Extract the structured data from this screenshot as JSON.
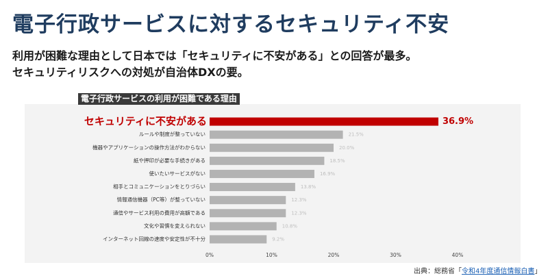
{
  "header": {
    "title": "電子行政サービスに対するセキュリティ不安",
    "subtitle_line1": "利用が困難な理由として日本では「セキュリティに不安がある」との回答が最多。",
    "subtitle_line2": "セキュリティリスクへの対処が自治体DXの要。"
  },
  "source": {
    "prefix": "出典：総務省「",
    "link_text": "令和4年度通信情報白書",
    "suffix": "」"
  },
  "colors": {
    "highlight": "#c00000",
    "bar": "#b3b3b3",
    "panel": "#f3f3f3",
    "value_gray": "#bdbdbd"
  },
  "chart_data": {
    "type": "bar",
    "orientation": "horizontal",
    "title": "電子行政サービスの利用が困難である理由",
    "categories": [
      "セキュリティに不安がある",
      "ルールや制度が整っていない",
      "機器やアプリケーションの操作方法がわからない",
      "紙や押印が必要な手続きがある",
      "使いたいサービスがない",
      "相手とコミュニケーションをとりづらい",
      "情報通信機器（PC等）が整っていない",
      "通信やサービス利用の費用が高額である",
      "文化や習慣を変えられない",
      "インターネット回線の速度や安定性が不十分"
    ],
    "values": [
      36.9,
      21.5,
      20.0,
      18.5,
      16.9,
      13.8,
      12.3,
      12.3,
      10.8,
      9.2
    ],
    "value_labels": [
      "36.9%",
      "21.5%",
      "20.0%",
      "18.5%",
      "16.9%",
      "13.8%",
      "12.3%",
      "12.3%",
      "10.8%",
      "9.2%"
    ],
    "highlight_index": 0,
    "x_ticks": [
      0,
      10,
      20,
      30,
      40
    ],
    "x_tick_labels": [
      "0%",
      "10%",
      "20%",
      "30%",
      "40%"
    ],
    "xlim": [
      0,
      40
    ],
    "xlabel": "",
    "ylabel": "",
    "legend": "none",
    "grid": "none"
  }
}
